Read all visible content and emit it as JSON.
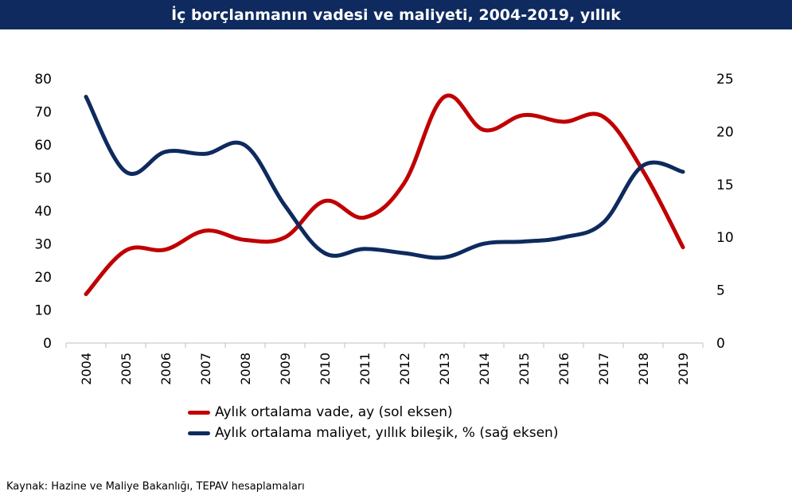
{
  "title": "İç borçlanmanın vadesi ve maliyeti, 2004-2019, yıllık",
  "source": "Kaynak: Hazine ve Maliye Bakanlığı, TEPAV hesaplamaları",
  "colors": {
    "header_bg": "#0e2a5e",
    "vade": "#c00000",
    "maliyet": "#0e2a5e"
  },
  "chart_data": {
    "type": "line",
    "categories": [
      "2004",
      "2005",
      "2006",
      "2007",
      "2008",
      "2009",
      "2010",
      "2011",
      "2012",
      "2013",
      "2014",
      "2015",
      "2016",
      "2017",
      "2018",
      "2019"
    ],
    "y_left_ticks": [
      "80",
      "70",
      "60",
      "50",
      "40",
      "30",
      "20",
      "10",
      "0"
    ],
    "y_right_ticks": [
      "25",
      "20",
      "15",
      "10",
      "5",
      "0"
    ],
    "ylim_left": [
      0,
      80
    ],
    "ylim_right": [
      0,
      25
    ],
    "grid": false,
    "legend_position": "bottom",
    "series": [
      {
        "name": "Aylık ortalama vade, ay (sol eksen)",
        "axis": "left",
        "color": "#c00000",
        "values": [
          14.8,
          28.0,
          28.3,
          34.0,
          31.2,
          32.0,
          43.0,
          38.0,
          48.5,
          74.5,
          64.5,
          69.0,
          67.0,
          68.5,
          52.0,
          29.0
        ]
      },
      {
        "name": "Aylık ortalama maliyet, yıllık bileşik, % (sağ eksen)",
        "axis": "right",
        "color": "#0e2a5e",
        "values": [
          23.3,
          16.2,
          18.1,
          17.9,
          18.7,
          13.0,
          8.5,
          8.9,
          8.5,
          8.1,
          9.4,
          9.6,
          10.0,
          11.4,
          16.8,
          16.2
        ]
      }
    ]
  }
}
